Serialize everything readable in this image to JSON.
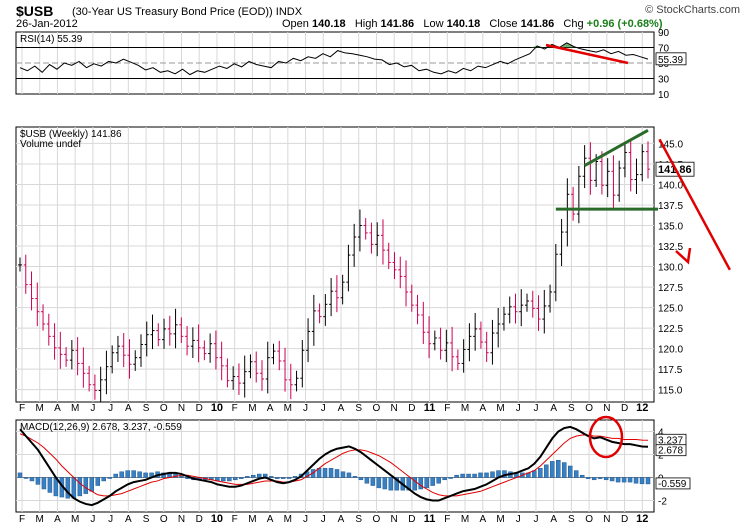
{
  "header": {
    "symbol": "$USB",
    "description": "(30-Year US Treasury Bond Price (EOD))",
    "exchange": "INDX",
    "date": "26-Jan-2012",
    "brand": "© StockCharts.com",
    "open_label": "Open",
    "open": "140.18",
    "high_label": "High",
    "high": "141.86",
    "low_label": "Low",
    "low": "140.18",
    "close_label": "Close",
    "close": "141.86",
    "chg_label": "Chg",
    "chg": "+0.96 (+0.68%)"
  },
  "colors": {
    "price_up": "#000000",
    "price_down": "#cc0055",
    "rsi_line": "#000000",
    "rsi_fill": "#3a8a3a",
    "macd_line": "#000000",
    "signal_line": "#e00000",
    "hist": "#3a7fc0",
    "annot_red": "#e00000",
    "annot_green": "#2a6a2a",
    "grid": "#d8d8d8"
  },
  "chart_data": [
    {
      "type": "line",
      "panel": "rsi",
      "title": "RSI(14) 55.39",
      "current_value": "55.39",
      "ylim": [
        10,
        90
      ],
      "y_ticks": [
        "90",
        "70",
        "50",
        "30",
        "10"
      ],
      "overbought": 70,
      "oversold": 30,
      "series": [
        {
          "values": [
            44,
            40,
            46,
            38,
            48,
            42,
            50,
            47,
            52,
            44,
            49,
            46,
            52,
            50,
            55,
            51,
            47,
            41,
            44,
            38,
            40,
            36,
            42,
            35,
            40,
            38,
            42,
            46,
            43,
            49,
            45,
            52,
            48,
            46,
            44,
            52,
            50,
            56,
            53,
            58,
            56,
            62,
            58,
            66,
            63,
            62,
            60,
            58,
            55,
            54,
            48,
            50,
            45,
            47,
            40,
            42,
            38,
            36,
            40,
            37,
            43,
            40,
            46,
            44,
            48,
            52,
            49,
            54,
            58,
            62,
            72,
            68,
            74,
            70,
            76,
            71,
            68,
            66,
            64,
            67,
            62,
            65,
            60,
            61,
            58,
            55
          ]
        }
      ]
    },
    {
      "type": "ohlc",
      "panel": "price",
      "title": "$USB (Weekly) 141.86",
      "volume_label": "Volume undef",
      "current_value": "141.86",
      "ylim": [
        113.5,
        147
      ],
      "y_ticks": [
        "145.0",
        "142.5",
        "140.0",
        "137.5",
        "135.0",
        "132.5",
        "130.0",
        "127.5",
        "125.0",
        "122.5",
        "120.0",
        "117.5",
        "115.0"
      ],
      "x_ticks": [
        "F",
        "M",
        "A",
        "M",
        "J",
        "J",
        "A",
        "S",
        "O",
        "N",
        "D",
        "10",
        "F",
        "M",
        "A",
        "M",
        "J",
        "J",
        "A",
        "S",
        "O",
        "N",
        "D",
        "11",
        "F",
        "M",
        "A",
        "M",
        "J",
        "J",
        "A",
        "S",
        "O",
        "N",
        "D",
        "12"
      ],
      "close": [
        130.2,
        127.8,
        126.1,
        124.5,
        123.0,
        121.5,
        120.1,
        119.3,
        118.6,
        119.8,
        118.2,
        117.0,
        115.6,
        114.9,
        116.2,
        117.8,
        119.5,
        120.3,
        119.2,
        118.1,
        118.9,
        120.5,
        121.7,
        122.2,
        121.1,
        122.4,
        121.8,
        122.9,
        121.5,
        120.3,
        121.0,
        120.1,
        119.4,
        120.6,
        118.9,
        117.9,
        116.1,
        116.6,
        115.8,
        117.2,
        118.4,
        117.0,
        116.3,
        118.9,
        119.7,
        118.5,
        116.2,
        115.6,
        116.4,
        119.8,
        122.1,
        124.6,
        123.9,
        125.4,
        127.0,
        126.2,
        128.1,
        131.4,
        133.6,
        135.0,
        134.1,
        132.7,
        133.8,
        132.0,
        130.5,
        129.6,
        128.8,
        126.9,
        125.3,
        124.1,
        122.0,
        120.6,
        121.3,
        119.8,
        120.7,
        119.0,
        118.2,
        119.9,
        121.5,
        122.4,
        120.8,
        119.5,
        121.9,
        123.0,
        124.2,
        125.1,
        124.5,
        125.3,
        125.8,
        124.9,
        123.6,
        125.2,
        126.9,
        131.5,
        134.2,
        138.8,
        136.4,
        141.0,
        143.2,
        140.5,
        142.8,
        139.9,
        141.6,
        138.7,
        142.0,
        143.9,
        140.6,
        141.2,
        144.0,
        141.86
      ]
    },
    {
      "type": "line",
      "panel": "macd",
      "title": "MACD(12,26,9) 2.678, 3.237, -0.559",
      "macd_value": "2.678",
      "signal_value": "3.237",
      "hist_value": "-0.559",
      "ylim": [
        -3,
        5
      ],
      "y_ticks": [
        "4",
        "2",
        "0",
        "-2"
      ],
      "x_ticks": [
        "F",
        "M",
        "A",
        "M",
        "J",
        "J",
        "A",
        "S",
        "O",
        "N",
        "D",
        "10",
        "F",
        "M",
        "A",
        "M",
        "J",
        "J",
        "A",
        "S",
        "O",
        "N",
        "D",
        "11",
        "F",
        "M",
        "A",
        "M",
        "J",
        "J",
        "A",
        "S",
        "O",
        "N",
        "D",
        "12"
      ],
      "series": [
        {
          "name": "MACD",
          "values": [
            4.2,
            3.6,
            3.0,
            2.4,
            1.6,
            0.8,
            0.0,
            -0.7,
            -1.3,
            -1.8,
            -2.1,
            -2.3,
            -2.4,
            -2.2,
            -1.9,
            -1.6,
            -1.2,
            -0.9,
            -0.6,
            -0.4,
            -0.3,
            -0.2,
            0.0,
            0.2,
            0.3,
            0.4,
            0.4,
            0.3,
            0.1,
            -0.1,
            -0.2,
            -0.3,
            -0.4,
            -0.6,
            -0.7,
            -0.8,
            -0.8,
            -0.7,
            -0.5,
            -0.3,
            -0.1,
            0.0,
            -0.2,
            -0.4,
            -0.5,
            -0.4,
            -0.2,
            0.1,
            0.6,
            1.1,
            1.6,
            2.0,
            2.3,
            2.5,
            2.6,
            2.7,
            2.5,
            2.2,
            1.8,
            1.4,
            1.0,
            0.6,
            0.2,
            -0.2,
            -0.6,
            -1.0,
            -1.4,
            -1.7,
            -1.9,
            -2.0,
            -2.0,
            -1.8,
            -1.6,
            -1.4,
            -1.2,
            -1.1,
            -1.0,
            -0.8,
            -0.6,
            -0.3,
            0.0,
            0.2,
            0.3,
            0.4,
            0.6,
            0.8,
            1.2,
            1.8,
            2.6,
            3.4,
            4.0,
            4.3,
            4.4,
            4.2,
            3.9,
            3.6,
            3.4,
            3.5,
            3.3,
            3.1,
            3.0,
            2.9,
            2.9,
            2.8,
            2.7,
            2.678
          ]
        },
        {
          "name": "Signal",
          "values": [
            3.8,
            3.6,
            3.3,
            3.0,
            2.6,
            2.1,
            1.6,
            1.0,
            0.5,
            0.0,
            -0.5,
            -0.9,
            -1.2,
            -1.5,
            -1.6,
            -1.6,
            -1.5,
            -1.4,
            -1.2,
            -1.0,
            -0.8,
            -0.6,
            -0.4,
            -0.3,
            -0.1,
            0.0,
            0.1,
            0.2,
            0.2,
            0.1,
            0.0,
            -0.1,
            -0.2,
            -0.3,
            -0.4,
            -0.5,
            -0.6,
            -0.6,
            -0.6,
            -0.5,
            -0.4,
            -0.3,
            -0.3,
            -0.3,
            -0.4,
            -0.4,
            -0.3,
            -0.2,
            0.1,
            0.4,
            0.8,
            1.2,
            1.5,
            1.8,
            2.1,
            2.3,
            2.4,
            2.4,
            2.3,
            2.1,
            1.9,
            1.6,
            1.3,
            0.9,
            0.5,
            0.1,
            -0.3,
            -0.7,
            -1.0,
            -1.3,
            -1.5,
            -1.6,
            -1.6,
            -1.6,
            -1.5,
            -1.4,
            -1.3,
            -1.2,
            -1.0,
            -0.8,
            -0.6,
            -0.4,
            -0.2,
            0.0,
            0.2,
            0.4,
            0.6,
            1.0,
            1.5,
            2.0,
            2.5,
            3.0,
            3.4,
            3.6,
            3.7,
            3.7,
            3.6,
            3.6,
            3.5,
            3.4,
            3.4,
            3.3,
            3.3,
            3.3,
            3.25,
            3.237
          ]
        }
      ]
    }
  ]
}
